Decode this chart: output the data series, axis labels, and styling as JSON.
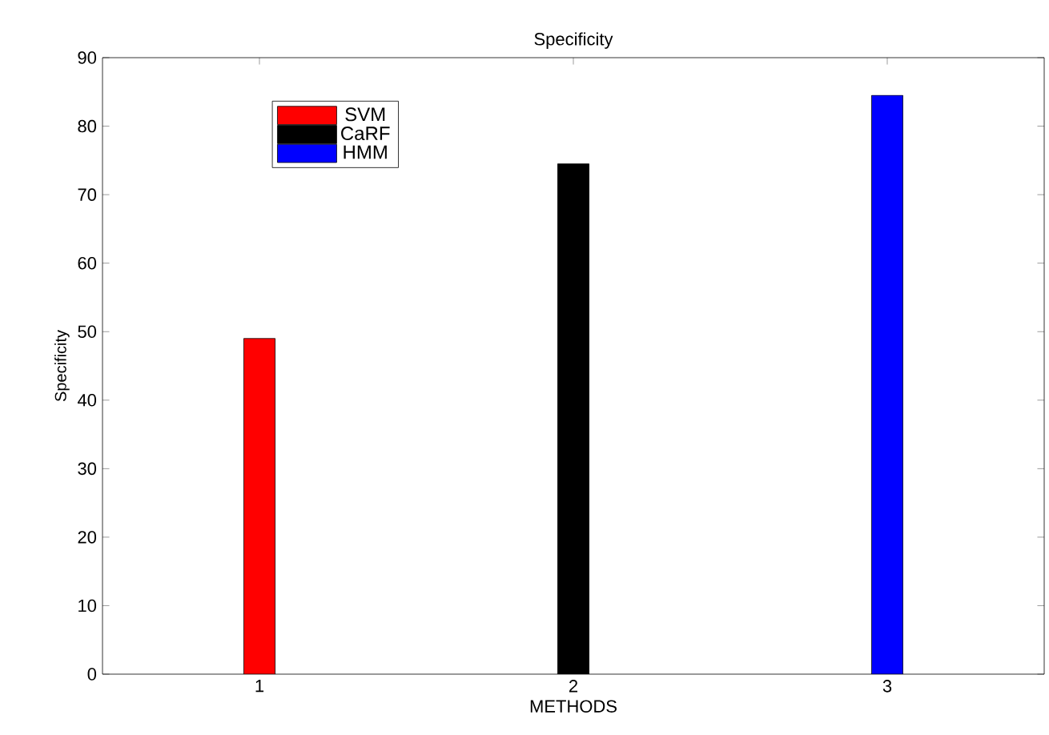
{
  "chart_data": {
    "type": "bar",
    "title": "Specificity",
    "xlabel": "METHODS",
    "ylabel": "Specificity",
    "series": [
      {
        "name": "SVM",
        "color": "#ff0000",
        "x": [
          1
        ],
        "values": [
          49
        ]
      },
      {
        "name": "CaRF",
        "color": "#000000",
        "x": [
          2
        ],
        "values": [
          74.5
        ]
      },
      {
        "name": "HMM",
        "color": "#0000ff",
        "x": [
          3
        ],
        "values": [
          84.5
        ]
      }
    ],
    "xlim": [
      0.5,
      3.5
    ],
    "xticks": [
      1,
      2,
      3
    ],
    "ylim": [
      0,
      90
    ],
    "yticks": [
      0,
      10,
      20,
      30,
      40,
      50,
      60,
      70,
      80,
      90
    ],
    "legend": "top left",
    "grid": false
  }
}
